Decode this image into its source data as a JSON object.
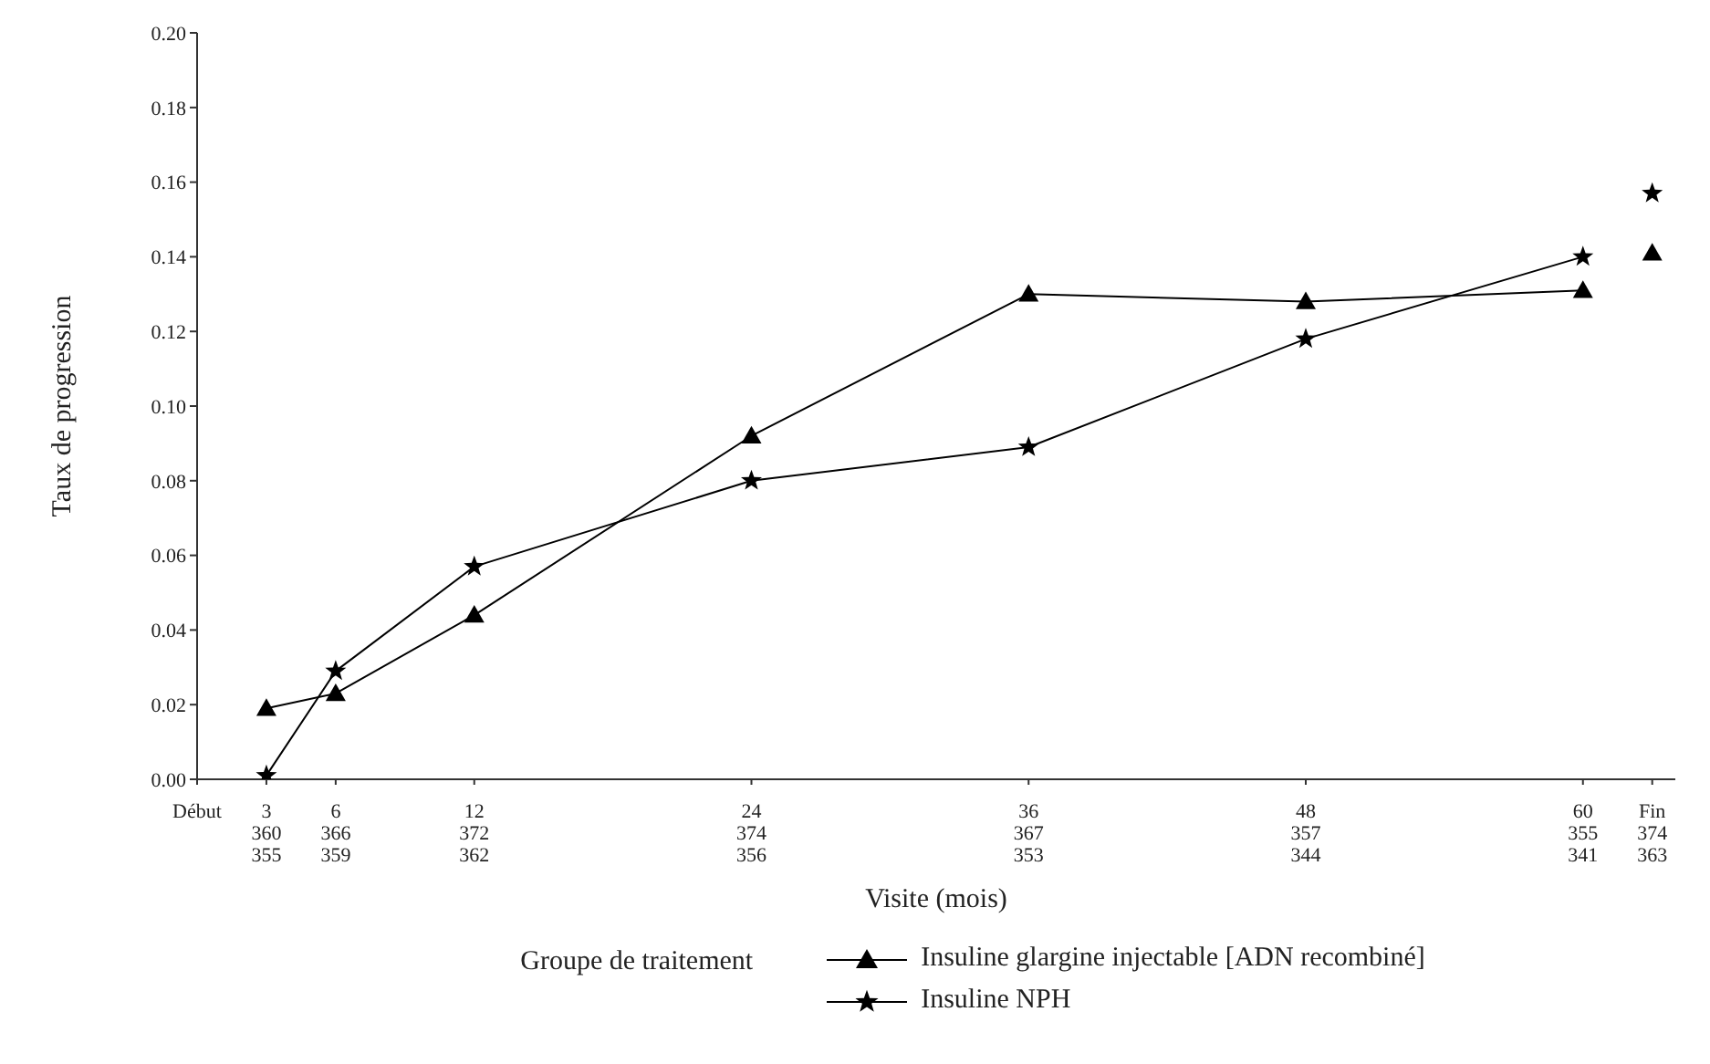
{
  "chart_data": {
    "type": "line",
    "xlabel": "Visite (mois)",
    "ylabel": "Taux de progression",
    "legend_title": "Groupe de traitement",
    "xlim": [
      0,
      64
    ],
    "ylim": [
      0,
      0.2
    ],
    "xticks": [
      {
        "value": 0,
        "label": "Début"
      },
      3,
      6,
      12,
      24,
      36,
      48,
      60,
      {
        "value": 63,
        "label": "Fin"
      }
    ],
    "annotations": [
      "360\n355",
      "366\n359",
      "372\n362",
      "374\n356",
      "367\n353",
      "357\n344",
      "355\n341",
      "374\n363"
    ],
    "yticks": [
      {
        "value": 0,
        "label": "0.00"
      },
      {
        "value": 0.02,
        "label": "0.02"
      },
      {
        "value": 0.04,
        "label": "0.04"
      },
      {
        "value": 0.06,
        "label": "0.06"
      },
      {
        "value": 0.08,
        "label": "0.08"
      },
      {
        "value": 0.1,
        "label": "0.10"
      },
      {
        "value": 0.12,
        "label": "0.12"
      },
      {
        "value": 0.14,
        "label": "0.14"
      },
      {
        "value": 0.16,
        "label": "0.16"
      },
      {
        "value": 0.18,
        "label": "0.18"
      },
      {
        "value": 0.2,
        "label": "0.20"
      }
    ],
    "grid": false,
    "legend": "bottom",
    "series": [
      {
        "name": "Insuline glargine injectable [ADN recombiné]",
        "color": "#000000",
        "marker": "triangle",
        "x": [
          3,
          6,
          12,
          24,
          36,
          48,
          60
        ],
        "values": [
          0.019,
          0.023,
          0.044,
          0.092,
          0.13,
          0.128,
          0.131
        ]
      },
      {
        "name": "Insuline NPH",
        "color": "#000000",
        "marker": "star",
        "x": [
          3,
          6,
          12,
          24,
          36,
          48,
          60
        ],
        "values": [
          0.001,
          0.029,
          0.057,
          0.08,
          0.089,
          0.118,
          0.14
        ]
      },
      {
        "type": "scatter",
        "color": "#000000",
        "marker": "triangle",
        "x": [
          63
        ],
        "values": [
          0.141
        ]
      },
      {
        "type": "scatter",
        "color": "#000000",
        "marker": "star",
        "x": [
          63
        ],
        "values": [
          0.157
        ]
      }
    ]
  }
}
